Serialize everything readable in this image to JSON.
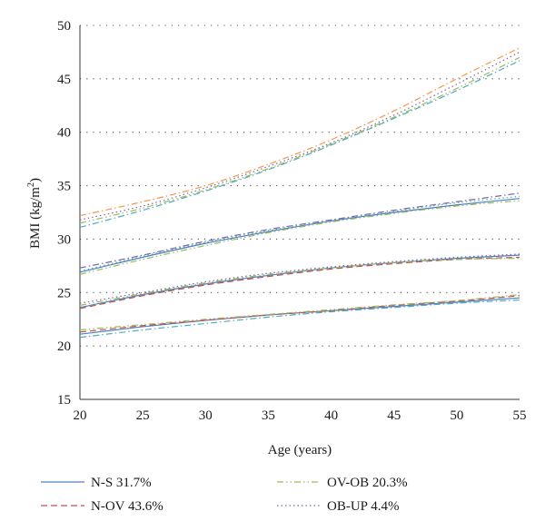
{
  "chart_data": {
    "type": "line",
    "title": "",
    "xlabel": "Age (years)",
    "ylabel_main": "BMI (kg/m",
    "ylabel_sup": "2",
    "ylabel_close": ")",
    "xlim": [
      20,
      55
    ],
    "ylim": [
      15,
      50
    ],
    "xticks": [
      20,
      25,
      30,
      35,
      40,
      45,
      50,
      55
    ],
    "yticks": [
      15,
      20,
      25,
      30,
      35,
      40,
      45,
      50
    ],
    "grid": "horizontal-dotted",
    "legend_position": "bottom",
    "legend": [
      {
        "label": "N-S 31.7%",
        "color": "#4f81bd",
        "dash": "solid"
      },
      {
        "label": "OV-OB 20.3%",
        "color": "#9bbb59",
        "dash": "dashdotdot"
      },
      {
        "label": "N-OV 43.6%",
        "color": "#c0504d",
        "dash": "dashed"
      },
      {
        "label": "OB-UP 4.4%",
        "color": "#8064a2",
        "dash": "dotted"
      }
    ],
    "x": [
      20,
      25,
      30,
      35,
      40,
      45,
      50,
      55
    ],
    "series": [
      {
        "group": 0,
        "color": "#4f81bd",
        "dash": "solid",
        "values": [
          21.1,
          21.8,
          22.4,
          22.9,
          23.3,
          23.7,
          24.1,
          24.5
        ]
      },
      {
        "group": 0,
        "color": "#c0504d",
        "dash": "dashed",
        "values": [
          21.3,
          21.9,
          22.4,
          22.9,
          23.3,
          23.8,
          24.2,
          24.7
        ]
      },
      {
        "group": 0,
        "color": "#9bbb59",
        "dash": "dashdotdot",
        "values": [
          21.5,
          22.0,
          22.5,
          22.95,
          23.4,
          23.85,
          24.25,
          24.8
        ]
      },
      {
        "group": 0,
        "color": "#4bacc6",
        "dash": "dashdot",
        "values": [
          20.8,
          21.5,
          22.1,
          22.7,
          23.2,
          23.6,
          24.0,
          24.3
        ]
      },
      {
        "group": 1,
        "color": "#4f81bd",
        "dash": "solid",
        "values": [
          23.6,
          24.8,
          25.8,
          26.6,
          27.3,
          27.8,
          28.2,
          28.5
        ]
      },
      {
        "group": 1,
        "color": "#c0504d",
        "dash": "dashed",
        "values": [
          23.5,
          24.7,
          25.7,
          26.5,
          27.2,
          27.7,
          28.1,
          28.3
        ]
      },
      {
        "group": 1,
        "color": "#9bbb59",
        "dash": "dashdotdot",
        "values": [
          23.8,
          24.9,
          25.9,
          26.7,
          27.3,
          27.8,
          28.1,
          28.2
        ]
      },
      {
        "group": 1,
        "color": "#8064a2",
        "dash": "dotted",
        "values": [
          24.0,
          25.0,
          26.0,
          26.8,
          27.4,
          27.9,
          28.3,
          28.6
        ]
      },
      {
        "group": 2,
        "color": "#4f81bd",
        "dash": "solid",
        "values": [
          26.9,
          28.3,
          29.6,
          30.7,
          31.7,
          32.5,
          33.2,
          33.8
        ]
      },
      {
        "group": 2,
        "color": "#9bbb59",
        "dash": "dashdotdot",
        "values": [
          26.7,
          28.1,
          29.4,
          30.6,
          31.6,
          32.4,
          33.1,
          33.6
        ]
      },
      {
        "group": 2,
        "color": "#8064a2",
        "dash": "dashdot",
        "values": [
          27.3,
          28.5,
          29.8,
          30.9,
          31.8,
          32.7,
          33.5,
          34.3
        ]
      },
      {
        "group": 2,
        "color": "#4bacc6",
        "dash": "dotted",
        "values": [
          27.0,
          28.4,
          29.7,
          30.8,
          31.7,
          32.6,
          33.4,
          34.0
        ]
      },
      {
        "group": 3,
        "color": "#f79646",
        "dash": "dashdot",
        "values": [
          32.2,
          33.5,
          35.0,
          37.0,
          39.3,
          42.0,
          45.0,
          47.9
        ]
      },
      {
        "group": 3,
        "color": "#8064a2",
        "dash": "dotted",
        "values": [
          31.8,
          33.1,
          34.8,
          36.8,
          39.0,
          41.6,
          44.5,
          47.5
        ]
      },
      {
        "group": 3,
        "color": "#4bacc6",
        "dash": "dashdot",
        "values": [
          31.1,
          32.7,
          34.5,
          36.5,
          38.8,
          41.3,
          43.9,
          46.7
        ]
      },
      {
        "group": 3,
        "color": "#9bbb59",
        "dash": "dashdotdot",
        "values": [
          31.5,
          32.9,
          34.6,
          36.6,
          38.9,
          41.4,
          44.1,
          47.0
        ]
      }
    ]
  }
}
